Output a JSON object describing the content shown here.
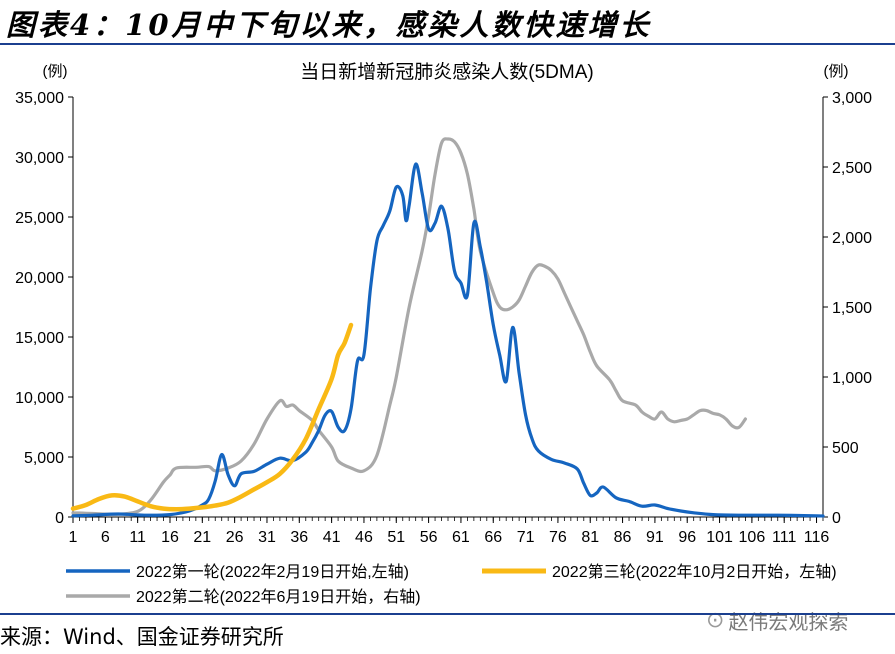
{
  "figure_title": "图表4：10月中下旬以来，感染人数快速增长",
  "source": "来源：Wind、国金证券研究所",
  "watermark": "赵伟宏观探索",
  "watermark_icon": "wechat-icon",
  "chart_data": {
    "type": "line",
    "title": "当日新增新冠肺炎感染人数(5DMA)",
    "y_left_unit": "(例)",
    "y_right_unit": "(例)",
    "xlim": [
      1,
      117
    ],
    "x_ticks": [
      1,
      6,
      11,
      16,
      21,
      26,
      31,
      36,
      41,
      46,
      51,
      56,
      61,
      66,
      71,
      76,
      81,
      86,
      91,
      96,
      101,
      106,
      111,
      116
    ],
    "y_left_lim": [
      0,
      35000
    ],
    "y_left_ticks": [
      0,
      5000,
      10000,
      15000,
      20000,
      25000,
      30000,
      35000
    ],
    "y_left_tick_labels": [
      "0",
      "5,000",
      "10,000",
      "15,000",
      "20,000",
      "25,000",
      "30,000",
      "35,000"
    ],
    "y_right_lim": [
      0,
      3000
    ],
    "y_right_ticks": [
      0,
      500,
      1000,
      1500,
      2000,
      2500,
      3000
    ],
    "y_right_tick_labels": [
      "0",
      "500",
      "1,000",
      "1,500",
      "2,000",
      "2,500",
      "3,000"
    ],
    "grid": false,
    "legend_position": "bottom",
    "series": [
      {
        "name": "2022第一轮(2022年2月19日开始,左轴)",
        "axis": "left",
        "color": "#1565c0",
        "points": [
          [
            1,
            100
          ],
          [
            4,
            150
          ],
          [
            8,
            250
          ],
          [
            12,
            150
          ],
          [
            16,
            200
          ],
          [
            19,
            500
          ],
          [
            21,
            1000
          ],
          [
            22,
            1500
          ],
          [
            23,
            3000
          ],
          [
            24,
            5200
          ],
          [
            25,
            3500
          ],
          [
            26,
            2600
          ],
          [
            27,
            3600
          ],
          [
            29,
            3800
          ],
          [
            31,
            4400
          ],
          [
            33,
            4900
          ],
          [
            35,
            4700
          ],
          [
            37,
            5400
          ],
          [
            38,
            6200
          ],
          [
            39,
            7200
          ],
          [
            40,
            8500
          ],
          [
            41,
            8800
          ],
          [
            42,
            7500
          ],
          [
            43,
            7200
          ],
          [
            44,
            9000
          ],
          [
            45,
            13000
          ],
          [
            46,
            13500
          ],
          [
            47,
            19000
          ],
          [
            48,
            23000
          ],
          [
            49,
            24300
          ],
          [
            50,
            25500
          ],
          [
            51,
            27500
          ],
          [
            52,
            26800
          ],
          [
            52.5,
            24700
          ],
          [
            53,
            26000
          ],
          [
            54,
            29400
          ],
          [
            55,
            27000
          ],
          [
            56,
            24000
          ],
          [
            57,
            24500
          ],
          [
            58,
            25900
          ],
          [
            59,
            24000
          ],
          [
            60,
            20500
          ],
          [
            61,
            19500
          ],
          [
            62,
            18500
          ],
          [
            63,
            24500
          ],
          [
            64,
            22500
          ],
          [
            65,
            19500
          ],
          [
            66,
            16000
          ],
          [
            67,
            13500
          ],
          [
            68,
            11300
          ],
          [
            69,
            15800
          ],
          [
            70,
            12000
          ],
          [
            71,
            8500
          ],
          [
            72,
            6500
          ],
          [
            73,
            5500
          ],
          [
            75,
            4800
          ],
          [
            77,
            4500
          ],
          [
            79,
            4000
          ],
          [
            80,
            2800
          ],
          [
            81,
            1800
          ],
          [
            82,
            2000
          ],
          [
            83,
            2500
          ],
          [
            85,
            1600
          ],
          [
            87,
            1300
          ],
          [
            89,
            900
          ],
          [
            91,
            1000
          ],
          [
            93,
            700
          ],
          [
            95,
            500
          ],
          [
            97,
            350
          ],
          [
            100,
            200
          ],
          [
            104,
            150
          ],
          [
            110,
            150
          ],
          [
            116,
            100
          ],
          [
            117,
            80
          ]
        ]
      },
      {
        "name": "2022第三轮(2022年10月2日开始，左轴)",
        "axis": "left",
        "color": "#f9b915",
        "points": [
          [
            1,
            700
          ],
          [
            3,
            1000
          ],
          [
            5,
            1500
          ],
          [
            7,
            1800
          ],
          [
            9,
            1700
          ],
          [
            11,
            1300
          ],
          [
            13,
            900
          ],
          [
            15,
            700
          ],
          [
            17,
            650
          ],
          [
            19,
            700
          ],
          [
            21,
            800
          ],
          [
            23,
            950
          ],
          [
            25,
            1200
          ],
          [
            27,
            1700
          ],
          [
            29,
            2300
          ],
          [
            31,
            2900
          ],
          [
            33,
            3600
          ],
          [
            35,
            4800
          ],
          [
            37,
            6500
          ],
          [
            39,
            9000
          ],
          [
            41,
            11500
          ],
          [
            42,
            13500
          ],
          [
            43,
            14500
          ],
          [
            44,
            16000
          ]
        ]
      },
      {
        "name": "2022第二轮(2022年6月19日开始，右轴)",
        "axis": "right",
        "color": "#a9a9a9",
        "points": [
          [
            1,
            30
          ],
          [
            4,
            25
          ],
          [
            8,
            20
          ],
          [
            11,
            40
          ],
          [
            13,
            120
          ],
          [
            15,
            250
          ],
          [
            16,
            300
          ],
          [
            17,
            350
          ],
          [
            20,
            355
          ],
          [
            22,
            360
          ],
          [
            23,
            330
          ],
          [
            25,
            350
          ],
          [
            27,
            400
          ],
          [
            29,
            520
          ],
          [
            31,
            700
          ],
          [
            33,
            830
          ],
          [
            34,
            790
          ],
          [
            35,
            800
          ],
          [
            36,
            760
          ],
          [
            38,
            690
          ],
          [
            39,
            620
          ],
          [
            41,
            500
          ],
          [
            42,
            400
          ],
          [
            44,
            350
          ],
          [
            46,
            330
          ],
          [
            48,
            440
          ],
          [
            50,
            800
          ],
          [
            51,
            1000
          ],
          [
            53,
            1500
          ],
          [
            55,
            1900
          ],
          [
            56,
            2150
          ],
          [
            57,
            2450
          ],
          [
            58,
            2670
          ],
          [
            59,
            2700
          ],
          [
            60,
            2680
          ],
          [
            61,
            2600
          ],
          [
            62,
            2450
          ],
          [
            63,
            2200
          ],
          [
            64,
            1900
          ],
          [
            66,
            1600
          ],
          [
            67,
            1500
          ],
          [
            68,
            1480
          ],
          [
            69,
            1500
          ],
          [
            70,
            1550
          ],
          [
            71,
            1650
          ],
          [
            72,
            1750
          ],
          [
            73,
            1800
          ],
          [
            74,
            1790
          ],
          [
            75,
            1760
          ],
          [
            76,
            1700
          ],
          [
            77,
            1600
          ],
          [
            78,
            1500
          ],
          [
            79,
            1400
          ],
          [
            80,
            1300
          ],
          [
            81,
            1180
          ],
          [
            82,
            1080
          ],
          [
            84,
            980
          ],
          [
            85,
            900
          ],
          [
            86,
            830
          ],
          [
            88,
            800
          ],
          [
            89,
            750
          ],
          [
            90,
            720
          ],
          [
            91,
            700
          ],
          [
            92,
            750
          ],
          [
            93,
            700
          ],
          [
            94,
            680
          ],
          [
            95,
            690
          ],
          [
            96,
            700
          ],
          [
            97,
            730
          ],
          [
            98,
            760
          ],
          [
            99,
            760
          ],
          [
            100,
            740
          ],
          [
            101,
            730
          ],
          [
            102,
            700
          ],
          [
            103,
            650
          ],
          [
            104,
            640
          ],
          [
            105,
            700
          ]
        ]
      }
    ]
  }
}
